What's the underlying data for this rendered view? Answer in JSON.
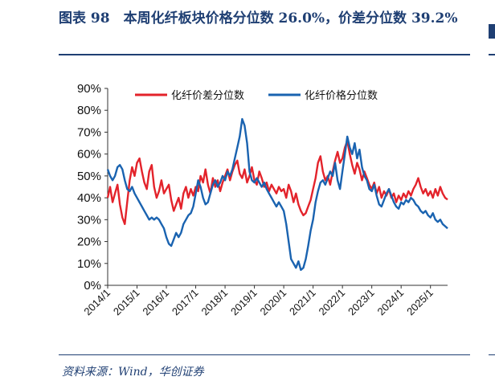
{
  "figure": {
    "title": "图表 98　本周化纤板块价格分位数 26.0%，价差分位数 39.2%",
    "source": "资料来源：Wind，华创证券"
  },
  "chart_data": {
    "type": "line",
    "title": "",
    "xlabel": "",
    "ylabel": "",
    "ylim": [
      0,
      90
    ],
    "yticks": [
      "0%",
      "10%",
      "20%",
      "30%",
      "40%",
      "50%",
      "60%",
      "70%",
      "80%",
      "90%"
    ],
    "xticks": [
      "2014/1",
      "2015/1",
      "2016/1",
      "2017/1",
      "2018/1",
      "2019/1",
      "2020/1",
      "2021/1",
      "2022/1",
      "2023/1",
      "2024/1",
      "2025/1"
    ],
    "xlim": [
      "2014/1",
      "2025/8"
    ],
    "grid": false,
    "legend": "top",
    "series": [
      {
        "name": "化纤价差分位数",
        "color": "#e3232b",
        "points": [
          [
            "2014/1",
            40
          ],
          [
            "2014/2",
            45
          ],
          [
            "2014/3",
            38
          ],
          [
            "2014/4",
            42
          ],
          [
            "2014/5",
            46
          ],
          [
            "2014/6",
            37
          ],
          [
            "2014/7",
            31
          ],
          [
            "2014/8",
            28
          ],
          [
            "2014/9",
            38
          ],
          [
            "2014/10",
            48
          ],
          [
            "2014/11",
            54
          ],
          [
            "2014/12",
            50
          ],
          [
            "2015/1",
            56
          ],
          [
            "2015/2",
            58
          ],
          [
            "2015/3",
            52
          ],
          [
            "2015/4",
            47
          ],
          [
            "2015/5",
            44
          ],
          [
            "2015/6",
            52
          ],
          [
            "2015/7",
            55
          ],
          [
            "2015/8",
            45
          ],
          [
            "2015/9",
            40
          ],
          [
            "2015/10",
            43
          ],
          [
            "2015/11",
            48
          ],
          [
            "2015/12",
            42
          ],
          [
            "2016/1",
            44
          ],
          [
            "2016/2",
            46
          ],
          [
            "2016/3",
            39
          ],
          [
            "2016/4",
            34
          ],
          [
            "2016/5",
            37
          ],
          [
            "2016/6",
            40
          ],
          [
            "2016/7",
            35
          ],
          [
            "2016/8",
            42
          ],
          [
            "2016/9",
            45
          ],
          [
            "2016/10",
            40
          ],
          [
            "2016/11",
            44
          ],
          [
            "2016/12",
            41
          ],
          [
            "2017/1",
            45
          ],
          [
            "2017/2",
            43
          ],
          [
            "2017/3",
            50
          ],
          [
            "2017/4",
            47
          ],
          [
            "2017/5",
            53
          ],
          [
            "2017/6",
            46
          ],
          [
            "2017/7",
            42
          ],
          [
            "2017/8",
            49
          ],
          [
            "2017/9",
            45
          ],
          [
            "2017/10",
            48
          ],
          [
            "2017/11",
            43
          ],
          [
            "2017/12",
            47
          ],
          [
            "2018/1",
            50
          ],
          [
            "2018/2",
            53
          ],
          [
            "2018/3",
            48
          ],
          [
            "2018/4",
            52
          ],
          [
            "2018/5",
            55
          ],
          [
            "2018/6",
            57
          ],
          [
            "2018/7",
            51
          ],
          [
            "2018/8",
            49
          ],
          [
            "2018/9",
            53
          ],
          [
            "2018/10",
            47
          ],
          [
            "2018/11",
            50
          ],
          [
            "2018/12",
            54
          ],
          [
            "2019/1",
            48
          ],
          [
            "2019/2",
            46
          ],
          [
            "2019/3",
            52
          ],
          [
            "2019/4",
            49
          ],
          [
            "2019/5",
            45
          ],
          [
            "2019/6",
            47
          ],
          [
            "2019/7",
            43
          ],
          [
            "2019/8",
            46
          ],
          [
            "2019/9",
            44
          ],
          [
            "2019/10",
            42
          ],
          [
            "2019/11",
            45
          ],
          [
            "2019/12",
            43
          ],
          [
            "2020/1",
            44
          ],
          [
            "2020/2",
            40
          ],
          [
            "2020/3",
            46
          ],
          [
            "2020/4",
            43
          ],
          [
            "2020/5",
            38
          ],
          [
            "2020/6",
            42
          ],
          [
            "2020/7",
            37
          ],
          [
            "2020/8",
            34
          ],
          [
            "2020/9",
            32
          ],
          [
            "2020/10",
            33
          ],
          [
            "2020/11",
            36
          ],
          [
            "2020/12",
            39
          ],
          [
            "2021/1",
            44
          ],
          [
            "2021/2",
            49
          ],
          [
            "2021/3",
            56
          ],
          [
            "2021/4",
            59
          ],
          [
            "2021/5",
            52
          ],
          [
            "2021/6",
            48
          ],
          [
            "2021/7",
            50
          ],
          [
            "2021/8",
            46
          ],
          [
            "2021/9",
            52
          ],
          [
            "2021/10",
            57
          ],
          [
            "2021/11",
            61
          ],
          [
            "2021/12",
            56
          ],
          [
            "2022/1",
            58
          ],
          [
            "2022/2",
            63
          ],
          [
            "2022/3",
            66
          ],
          [
            "2022/4",
            60
          ],
          [
            "2022/5",
            55
          ],
          [
            "2022/6",
            51
          ],
          [
            "2022/7",
            56
          ],
          [
            "2022/8",
            53
          ],
          [
            "2022/9",
            48
          ],
          [
            "2022/10",
            52
          ],
          [
            "2022/11",
            49
          ],
          [
            "2022/12",
            46
          ],
          [
            "2023/1",
            44
          ],
          [
            "2023/2",
            47
          ],
          [
            "2023/3",
            42
          ],
          [
            "2023/4",
            45
          ],
          [
            "2023/5",
            40
          ],
          [
            "2023/6",
            43
          ],
          [
            "2023/7",
            41
          ],
          [
            "2023/8",
            44
          ],
          [
            "2023/9",
            40
          ],
          [
            "2023/10",
            42
          ],
          [
            "2023/11",
            38
          ],
          [
            "2023/12",
            41
          ],
          [
            "2024/1",
            39
          ],
          [
            "2024/2",
            42
          ],
          [
            "2024/3",
            40
          ],
          [
            "2024/4",
            43
          ],
          [
            "2024/5",
            41
          ],
          [
            "2024/6",
            44
          ],
          [
            "2024/7",
            46
          ],
          [
            "2024/8",
            49
          ],
          [
            "2024/9",
            45
          ],
          [
            "2024/10",
            42
          ],
          [
            "2024/11",
            44
          ],
          [
            "2024/12",
            41
          ],
          [
            "2025/1",
            43
          ],
          [
            "2025/2",
            40
          ],
          [
            "2025/3",
            44
          ],
          [
            "2025/4",
            41
          ],
          [
            "2025/5",
            45
          ],
          [
            "2025/6",
            42
          ],
          [
            "2025/7",
            40
          ],
          [
            "2025/8",
            39.2
          ]
        ]
      },
      {
        "name": "化纤价格分位数",
        "color": "#1a63b0",
        "points": [
          [
            "2014/1",
            53
          ],
          [
            "2014/2",
            50
          ],
          [
            "2014/3",
            48
          ],
          [
            "2014/4",
            50
          ],
          [
            "2014/5",
            54
          ],
          [
            "2014/6",
            55
          ],
          [
            "2014/7",
            53
          ],
          [
            "2014/8",
            48
          ],
          [
            "2014/9",
            44
          ],
          [
            "2014/10",
            43
          ],
          [
            "2014/11",
            45
          ],
          [
            "2014/12",
            42
          ],
          [
            "2015/1",
            40
          ],
          [
            "2015/2",
            38
          ],
          [
            "2015/3",
            36
          ],
          [
            "2015/4",
            34
          ],
          [
            "2015/5",
            32
          ],
          [
            "2015/6",
            30
          ],
          [
            "2015/7",
            31
          ],
          [
            "2015/8",
            30
          ],
          [
            "2015/9",
            31
          ],
          [
            "2015/10",
            30
          ],
          [
            "2015/11",
            28
          ],
          [
            "2015/12",
            26
          ],
          [
            "2016/1",
            22
          ],
          [
            "2016/2",
            19
          ],
          [
            "2016/3",
            18
          ],
          [
            "2016/4",
            21
          ],
          [
            "2016/5",
            24
          ],
          [
            "2016/6",
            22
          ],
          [
            "2016/7",
            24
          ],
          [
            "2016/8",
            28
          ],
          [
            "2016/9",
            30
          ],
          [
            "2016/10",
            32
          ],
          [
            "2016/11",
            33
          ],
          [
            "2016/12",
            36
          ],
          [
            "2017/1",
            42
          ],
          [
            "2017/2",
            48
          ],
          [
            "2017/3",
            45
          ],
          [
            "2017/4",
            40
          ],
          [
            "2017/5",
            37
          ],
          [
            "2017/6",
            38
          ],
          [
            "2017/7",
            42
          ],
          [
            "2017/8",
            46
          ],
          [
            "2017/9",
            48
          ],
          [
            "2017/10",
            45
          ],
          [
            "2017/11",
            47
          ],
          [
            "2017/12",
            50
          ],
          [
            "2018/1",
            48
          ],
          [
            "2018/2",
            52
          ],
          [
            "2018/3",
            50
          ],
          [
            "2018/4",
            53
          ],
          [
            "2018/5",
            58
          ],
          [
            "2018/6",
            63
          ],
          [
            "2018/7",
            68
          ],
          [
            "2018/8",
            76
          ],
          [
            "2018/9",
            73
          ],
          [
            "2018/10",
            65
          ],
          [
            "2018/11",
            52
          ],
          [
            "2018/12",
            48
          ],
          [
            "2019/1",
            47
          ],
          [
            "2019/2",
            49
          ],
          [
            "2019/3",
            47
          ],
          [
            "2019/4",
            45
          ],
          [
            "2019/5",
            47
          ],
          [
            "2019/6",
            44
          ],
          [
            "2019/7",
            42
          ],
          [
            "2019/8",
            40
          ],
          [
            "2019/9",
            38
          ],
          [
            "2019/10",
            36
          ],
          [
            "2019/11",
            38
          ],
          [
            "2019/12",
            36
          ],
          [
            "2020/1",
            34
          ],
          [
            "2020/2",
            28
          ],
          [
            "2020/3",
            20
          ],
          [
            "2020/4",
            12
          ],
          [
            "2020/5",
            10
          ],
          [
            "2020/6",
            8
          ],
          [
            "2020/7",
            11
          ],
          [
            "2020/8",
            7
          ],
          [
            "2020/9",
            8
          ],
          [
            "2020/10",
            12
          ],
          [
            "2020/11",
            18
          ],
          [
            "2020/12",
            25
          ],
          [
            "2021/1",
            30
          ],
          [
            "2021/2",
            38
          ],
          [
            "2021/3",
            43
          ],
          [
            "2021/4",
            47
          ],
          [
            "2021/5",
            48
          ],
          [
            "2021/6",
            46
          ],
          [
            "2021/7",
            49
          ],
          [
            "2021/8",
            52
          ],
          [
            "2021/9",
            50
          ],
          [
            "2021/10",
            56
          ],
          [
            "2021/11",
            48
          ],
          [
            "2021/12",
            44
          ],
          [
            "2022/1",
            52
          ],
          [
            "2022/2",
            60
          ],
          [
            "2022/3",
            68
          ],
          [
            "2022/4",
            63
          ],
          [
            "2022/5",
            60
          ],
          [
            "2022/6",
            65
          ],
          [
            "2022/7",
            58
          ],
          [
            "2022/8",
            62
          ],
          [
            "2022/9",
            54
          ],
          [
            "2022/10",
            50
          ],
          [
            "2022/11",
            48
          ],
          [
            "2022/12",
            44
          ],
          [
            "2023/1",
            43
          ],
          [
            "2023/2",
            46
          ],
          [
            "2023/3",
            41
          ],
          [
            "2023/4",
            37
          ],
          [
            "2023/5",
            36
          ],
          [
            "2023/6",
            39
          ],
          [
            "2023/7",
            42
          ],
          [
            "2023/8",
            44
          ],
          [
            "2023/9",
            41
          ],
          [
            "2023/10",
            38
          ],
          [
            "2023/11",
            36
          ],
          [
            "2023/12",
            35
          ],
          [
            "2024/1",
            38
          ],
          [
            "2024/2",
            37
          ],
          [
            "2024/3",
            39
          ],
          [
            "2024/4",
            38
          ],
          [
            "2024/5",
            40
          ],
          [
            "2024/6",
            39
          ],
          [
            "2024/7",
            37
          ],
          [
            "2024/8",
            36
          ],
          [
            "2024/9",
            34
          ],
          [
            "2024/10",
            33
          ],
          [
            "2024/11",
            34
          ],
          [
            "2024/12",
            32
          ],
          [
            "2025/1",
            31
          ],
          [
            "2025/2",
            33
          ],
          [
            "2025/3",
            30
          ],
          [
            "2025/4",
            29
          ],
          [
            "2025/5",
            30
          ],
          [
            "2025/6",
            28
          ],
          [
            "2025/7",
            27
          ],
          [
            "2025/8",
            26.0
          ]
        ]
      }
    ]
  }
}
